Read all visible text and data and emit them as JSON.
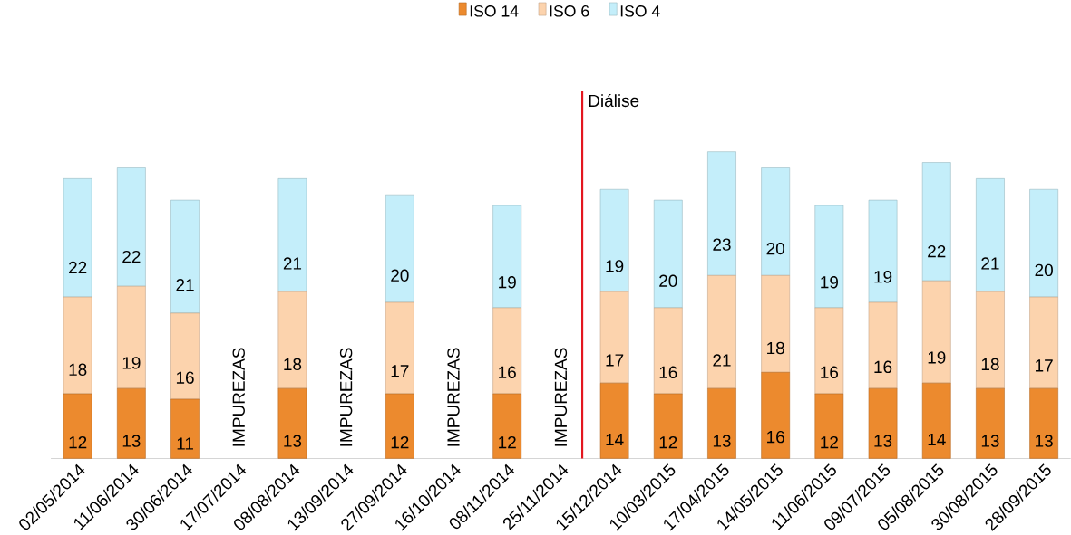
{
  "chart_data": {
    "type": "bar",
    "stacked": true,
    "data_labels": true,
    "legend": "top",
    "categories": [
      "02/05/2014",
      "11/06/2014",
      "30/06/2014",
      "17/07/2014",
      "08/08/2014",
      "13/09/2014",
      "27/09/2014",
      "16/10/2014",
      "08/11/2014",
      "25/11/2014",
      "15/12/2014",
      "10/03/2015",
      "17/04/2015",
      "14/05/2015",
      "11/06/2015",
      "09/07/2015",
      "05/08/2015",
      "30/08/2015",
      "28/09/2015"
    ],
    "series": [
      {
        "name": "ISO 14",
        "color": "#ec8a2e",
        "values": [
          12,
          13,
          11,
          null,
          13,
          null,
          12,
          null,
          12,
          null,
          14,
          12,
          13,
          16,
          12,
          13,
          14,
          13,
          13
        ]
      },
      {
        "name": "ISO 6",
        "color": "#fcd3ad",
        "values": [
          18,
          19,
          16,
          null,
          18,
          null,
          17,
          null,
          16,
          null,
          17,
          16,
          21,
          18,
          16,
          16,
          19,
          18,
          17
        ]
      },
      {
        "name": "ISO 4",
        "color": "#c4eefa",
        "values": [
          22,
          22,
          21,
          null,
          21,
          null,
          20,
          null,
          19,
          null,
          19,
          20,
          23,
          20,
          19,
          19,
          22,
          21,
          20
        ]
      }
    ],
    "annotations": [
      "IMPUREZAS",
      "IMPUREZAS",
      "IMPUREZAS",
      "IMPUREZAS"
    ],
    "ref_lines": [
      {
        "axis": "x",
        "value": "25/11/2014",
        "label": "Diálise",
        "color": "#e3161f"
      }
    ]
  }
}
